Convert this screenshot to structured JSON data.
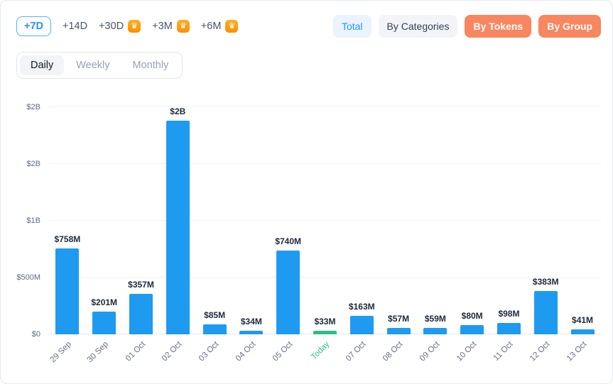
{
  "icons": {
    "crown": "♛"
  },
  "colors": {
    "bar_blue": "#1E9BF0",
    "bar_green": "#2EBD85",
    "accent_blue": "#2E90FA",
    "orange": "#F8865F"
  },
  "toolbar": {
    "periods": [
      {
        "label": "+7D",
        "active": true,
        "premium": false
      },
      {
        "label": "+14D",
        "active": false,
        "premium": false
      },
      {
        "label": "+30D",
        "active": false,
        "premium": true
      },
      {
        "label": "+3M",
        "active": false,
        "premium": true
      },
      {
        "label": "+6M",
        "active": false,
        "premium": true
      }
    ],
    "views": [
      {
        "label": "Total",
        "style": "blue"
      },
      {
        "label": "By Categories",
        "style": "gray"
      },
      {
        "label": "By Tokens",
        "style": "orange"
      },
      {
        "label": "By Group",
        "style": "orange"
      }
    ]
  },
  "granularity": {
    "tabs": [
      {
        "label": "Daily",
        "active": true
      },
      {
        "label": "Weekly",
        "active": false
      },
      {
        "label": "Monthly",
        "active": false
      }
    ]
  },
  "chart_data": {
    "type": "bar",
    "title": "",
    "xlabel": "",
    "ylabel": "",
    "unit": "USD",
    "ylim_musd": [
      0,
      2000
    ],
    "yticks": [
      {
        "value": 0,
        "label": "$0"
      },
      {
        "value": 500,
        "label": "$500M"
      },
      {
        "value": 1000,
        "label": "$1B"
      },
      {
        "value": 1500,
        "label": "$2B"
      },
      {
        "value": 2000,
        "label": "$2B"
      }
    ],
    "categories": [
      "29 Sep",
      "30 Sep",
      "01 Oct",
      "02 Oct",
      "03 Oct",
      "04 Oct",
      "05 Oct",
      "Today",
      "07 Oct",
      "08 Oct",
      "09 Oct",
      "10 Oct",
      "11 Oct",
      "12 Oct",
      "13 Oct"
    ],
    "points": [
      {
        "date": "29 Sep",
        "label": "$758M",
        "value_musd": 758,
        "today": false
      },
      {
        "date": "30 Sep",
        "label": "$201M",
        "value_musd": 201,
        "today": false
      },
      {
        "date": "01 Oct",
        "label": "$357M",
        "value_musd": 357,
        "today": false
      },
      {
        "date": "02 Oct",
        "label": "$2B",
        "value_musd": 1880,
        "today": false
      },
      {
        "date": "03 Oct",
        "label": "$85M",
        "value_musd": 85,
        "today": false
      },
      {
        "date": "04 Oct",
        "label": "$34M",
        "value_musd": 34,
        "today": false
      },
      {
        "date": "05 Oct",
        "label": "$740M",
        "value_musd": 740,
        "today": false
      },
      {
        "date": "Today",
        "label": "$33M",
        "value_musd": 33,
        "today": true
      },
      {
        "date": "07 Oct",
        "label": "$163M",
        "value_musd": 163,
        "today": false
      },
      {
        "date": "08 Oct",
        "label": "$57M",
        "value_musd": 57,
        "today": false
      },
      {
        "date": "09 Oct",
        "label": "$59M",
        "value_musd": 59,
        "today": false
      },
      {
        "date": "10 Oct",
        "label": "$80M",
        "value_musd": 80,
        "today": false
      },
      {
        "date": "11 Oct",
        "label": "$98M",
        "value_musd": 98,
        "today": false
      },
      {
        "date": "12 Oct",
        "label": "$383M",
        "value_musd": 383,
        "today": false
      },
      {
        "date": "13 Oct",
        "label": "$41M",
        "value_musd": 41,
        "today": false
      }
    ]
  }
}
